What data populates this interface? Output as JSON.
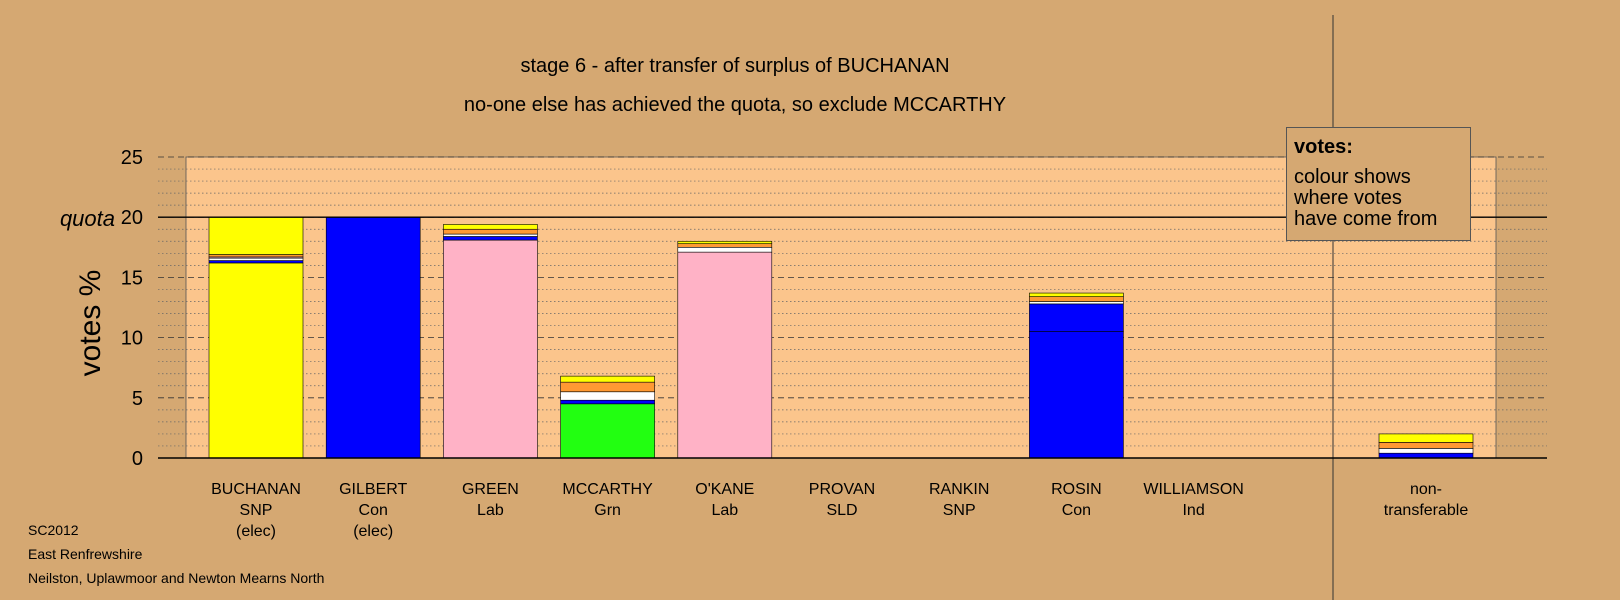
{
  "title": "stage 6 - after transfer of surplus of BUCHANAN",
  "subtitle": "no-one else has achieved the quota, so exclude MCCARTHY",
  "info": [
    "SC2012",
    "East Renfrewshire",
    "Neilston, Uplawmoor and Newton Mearns North"
  ],
  "legend": {
    "title": "votes:",
    "lines": [
      "colour shows",
      "where votes",
      "have come from"
    ]
  },
  "colors": {
    "background": "#d5a872",
    "plot_area": "#fbc58c",
    "SNP": "#ffff00",
    "Con": "#0000ff",
    "Lab": "#ffb2c6",
    "Grn": "#22ff11",
    "SLD": "#ff9933",
    "Ind": "#ffffff"
  },
  "chart_data": {
    "type": "bar",
    "stacked": true,
    "ylabel": "votes %",
    "quota_label": "quota",
    "quota": 20,
    "ylim": [
      0,
      25
    ],
    "yticks": [
      0,
      5,
      10,
      15,
      20,
      25
    ],
    "grid": true,
    "candidates": [
      {
        "name": "BUCHANAN",
        "party": "SNP",
        "status": "(elec)",
        "segments": [
          {
            "source": "SNP",
            "value": 16.2,
            "color": "#ffff00"
          },
          {
            "source": "Con",
            "value": 0.2,
            "color": "#0000ff"
          },
          {
            "source": "Ind",
            "value": 0.2,
            "color": "#ffffff"
          },
          {
            "source": "Lab",
            "value": 0.1,
            "color": "#ffb2c6"
          },
          {
            "source": "SLD",
            "value": 0.2,
            "color": "#ff9933"
          },
          {
            "source": "SNP",
            "value": 3.1,
            "color": "#ffff00"
          }
        ]
      },
      {
        "name": "GILBERT",
        "party": "Con",
        "status": "(elec)",
        "segments": [
          {
            "source": "Con",
            "value": 20.0,
            "color": "#0000ff"
          }
        ]
      },
      {
        "name": "GREEN",
        "party": "Lab",
        "status": "",
        "segments": [
          {
            "source": "Lab",
            "value": 18.1,
            "color": "#ffb2c6"
          },
          {
            "source": "Con",
            "value": 0.3,
            "color": "#0000ff"
          },
          {
            "source": "Ind",
            "value": 0.2,
            "color": "#ffffff"
          },
          {
            "source": "SLD",
            "value": 0.4,
            "color": "#ff9933"
          },
          {
            "source": "SNP",
            "value": 0.4,
            "color": "#ffff00"
          }
        ]
      },
      {
        "name": "MCCARTHY",
        "party": "Grn",
        "status": "",
        "segments": [
          {
            "source": "Grn",
            "value": 4.5,
            "color": "#22ff11"
          },
          {
            "source": "Con",
            "value": 0.3,
            "color": "#0000ff"
          },
          {
            "source": "Ind",
            "value": 0.7,
            "color": "#ffffff"
          },
          {
            "source": "SLD",
            "value": 0.8,
            "color": "#ff9933"
          },
          {
            "source": "SNP",
            "value": 0.5,
            "color": "#ffff00"
          }
        ]
      },
      {
        "name": "O'KANE",
        "party": "Lab",
        "status": "",
        "segments": [
          {
            "source": "Lab",
            "value": 17.1,
            "color": "#ffb2c6"
          },
          {
            "source": "Ind",
            "value": 0.4,
            "color": "#ffffff"
          },
          {
            "source": "SLD",
            "value": 0.3,
            "color": "#ff9933"
          },
          {
            "source": "SNP",
            "value": 0.2,
            "color": "#ffff00"
          }
        ]
      },
      {
        "name": "PROVAN",
        "party": "SLD",
        "status": "",
        "segments": []
      },
      {
        "name": "RANKIN",
        "party": "SNP",
        "status": "",
        "segments": []
      },
      {
        "name": "ROSIN",
        "party": "Con",
        "status": "",
        "segments": [
          {
            "source": "Con",
            "value": 10.5,
            "color": "#0000ff"
          },
          {
            "source": "Con",
            "value": 2.3,
            "color": "#0000ff"
          },
          {
            "source": "Ind",
            "value": 0.2,
            "color": "#ffffff"
          },
          {
            "source": "SLD",
            "value": 0.4,
            "color": "#ff9933"
          },
          {
            "source": "SNP",
            "value": 0.3,
            "color": "#ffff00"
          }
        ]
      },
      {
        "name": "WILLIAMSON",
        "party": "Ind",
        "status": "",
        "segments": []
      }
    ],
    "nontransferable": {
      "label": [
        "non-",
        "transferable"
      ],
      "segments": [
        {
          "source": "Con",
          "value": 0.4,
          "color": "#0000ff"
        },
        {
          "source": "Ind",
          "value": 0.4,
          "color": "#ffffff"
        },
        {
          "source": "SLD",
          "value": 0.5,
          "color": "#ff9933"
        },
        {
          "source": "SNP",
          "value": 0.7,
          "color": "#ffff00"
        }
      ]
    }
  }
}
